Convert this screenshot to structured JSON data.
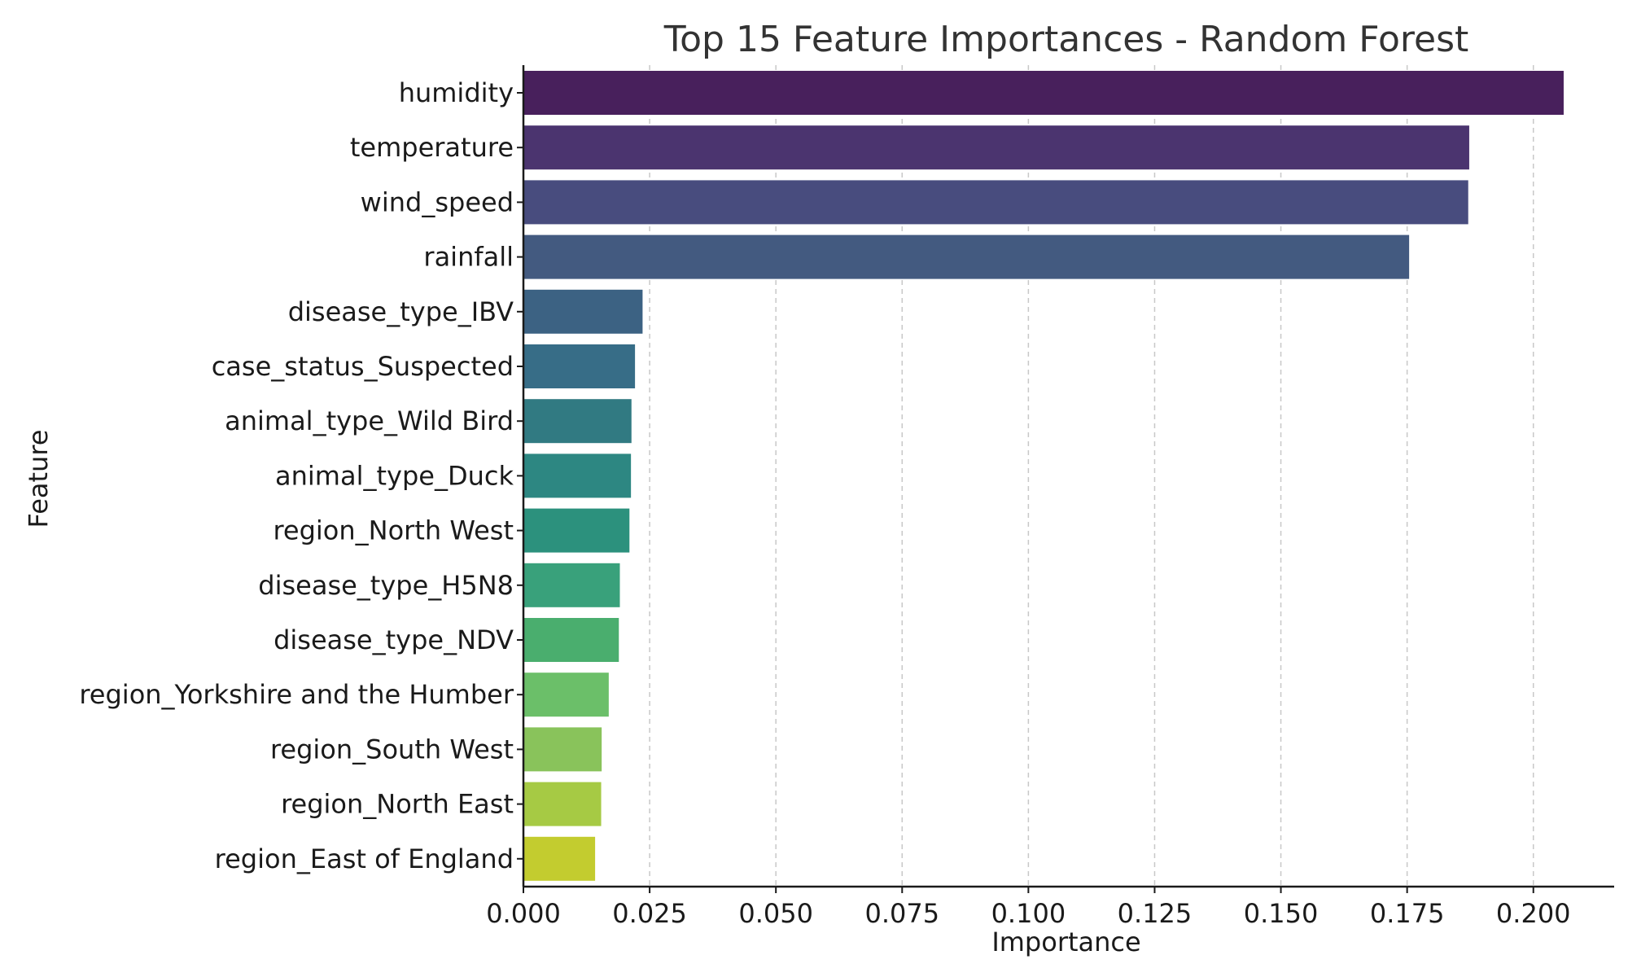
{
  "chart_data": {
    "type": "bar",
    "orientation": "horizontal",
    "title": "Top 15 Feature Importances - Random Forest",
    "xlabel": "Importance",
    "ylabel": "Feature",
    "xlim": [
      0,
      0.216
    ],
    "xticks": [
      "0.000",
      "0.025",
      "0.050",
      "0.075",
      "0.100",
      "0.125",
      "0.150",
      "0.175",
      "0.200"
    ],
    "grid": "x-axis dashed",
    "categories": [
      "humidity",
      "temperature",
      "wind_speed",
      "rainfall",
      "disease_type_IBV",
      "case_status_Suspected",
      "animal_type_Wild Bird",
      "animal_type_Duck",
      "region_North West",
      "disease_type_H5N8",
      "disease_type_NDV",
      "region_Yorkshire and the Humber",
      "region_South West",
      "region_North East",
      "region_East of England"
    ],
    "values": [
      0.206,
      0.1873,
      0.1871,
      0.1754,
      0.0236,
      0.0221,
      0.0214,
      0.0213,
      0.021,
      0.0191,
      0.0189,
      0.0169,
      0.0155,
      0.0154,
      0.0142
    ],
    "colors": [
      "#48205c",
      "#4b346f",
      "#484c7e",
      "#435a80",
      "#3c6283",
      "#376d87",
      "#317a82",
      "#2d8782",
      "#2c917d",
      "#39a17b",
      "#4aae6e",
      "#6bbf69",
      "#89c35b",
      "#a6ca44",
      "#c3cc2f"
    ]
  }
}
